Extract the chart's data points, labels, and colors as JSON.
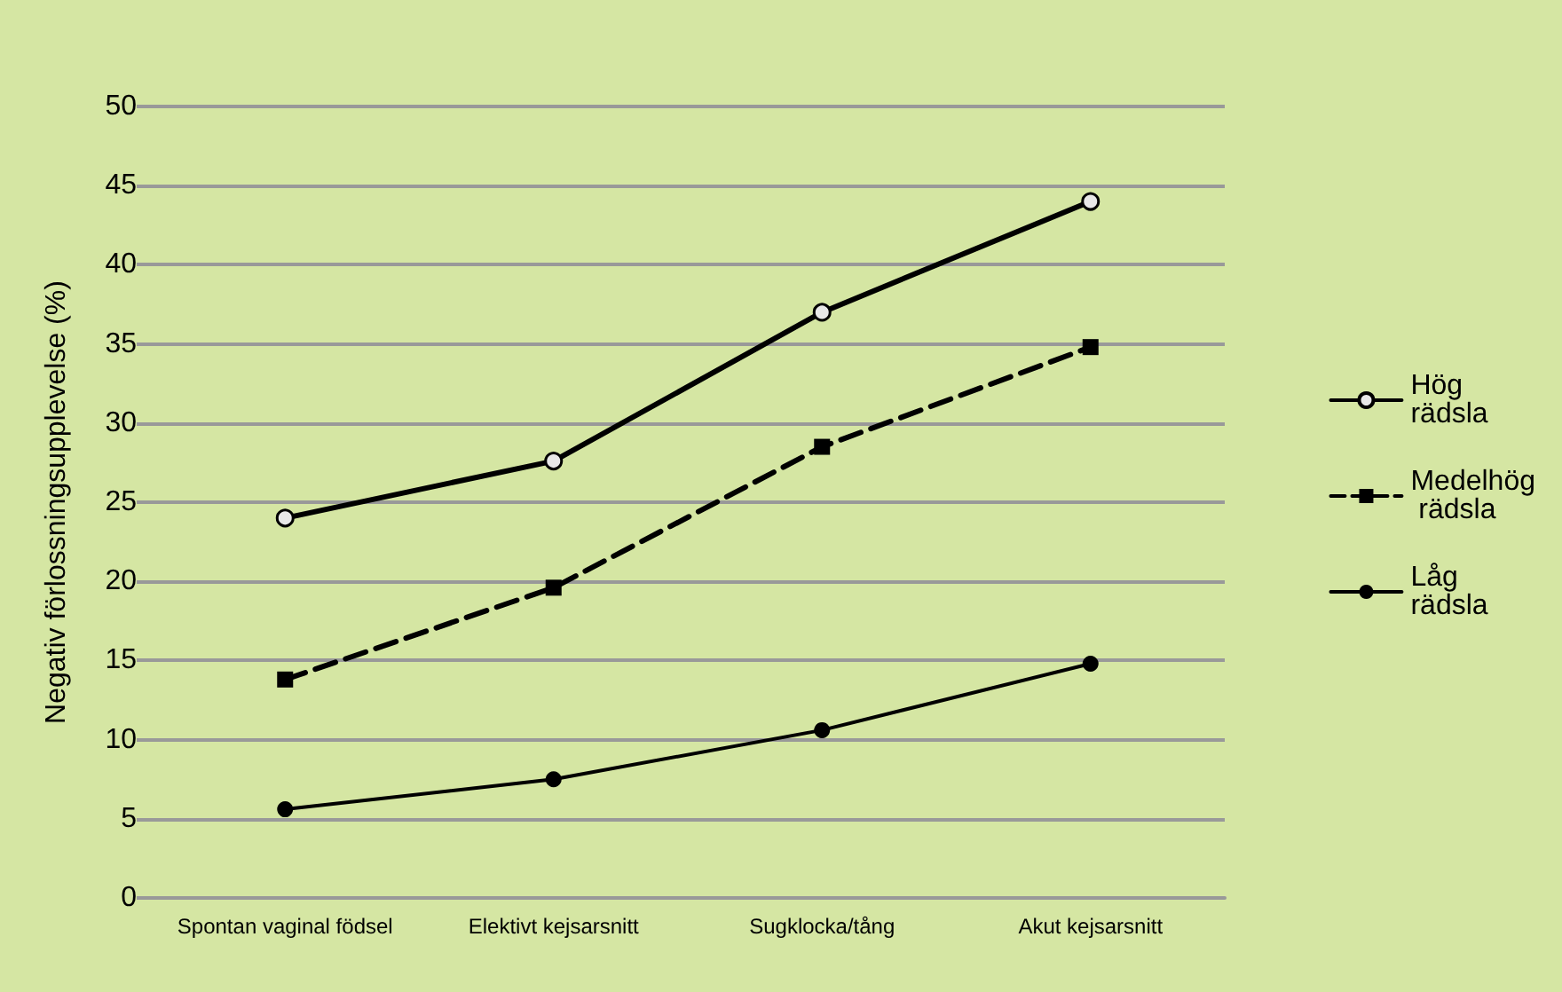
{
  "chart_data": {
    "type": "line",
    "ylabel": "Negativ förlossningsupplevelse (%)",
    "categories": [
      "Spontan vaginal födsel",
      "Elektivt kejsarsnitt",
      "Sugklocka/tång",
      "Akut kejsarsnitt"
    ],
    "series": [
      {
        "name": "Hög rädsla",
        "color": "#000000",
        "values": [
          24,
          27.6,
          37,
          44
        ],
        "marker": "circle",
        "line_style": "solid"
      },
      {
        "name": "Medelhög rädsla",
        "color": "#000000",
        "values": [
          13.8,
          19.6,
          28.5,
          34.8
        ],
        "marker": "square",
        "line_style": "dashed"
      },
      {
        "name": "Låg rädsla",
        "color": "#000000",
        "values": [
          5.6,
          7.5,
          10.6,
          14.8
        ],
        "marker": "circle",
        "line_style": "solid"
      }
    ],
    "ylim": [
      0,
      50
    ],
    "yticks": [
      0,
      5,
      10,
      15,
      20,
      25,
      30,
      35,
      40,
      45,
      50
    ],
    "grid": "y",
    "legend": "right"
  }
}
